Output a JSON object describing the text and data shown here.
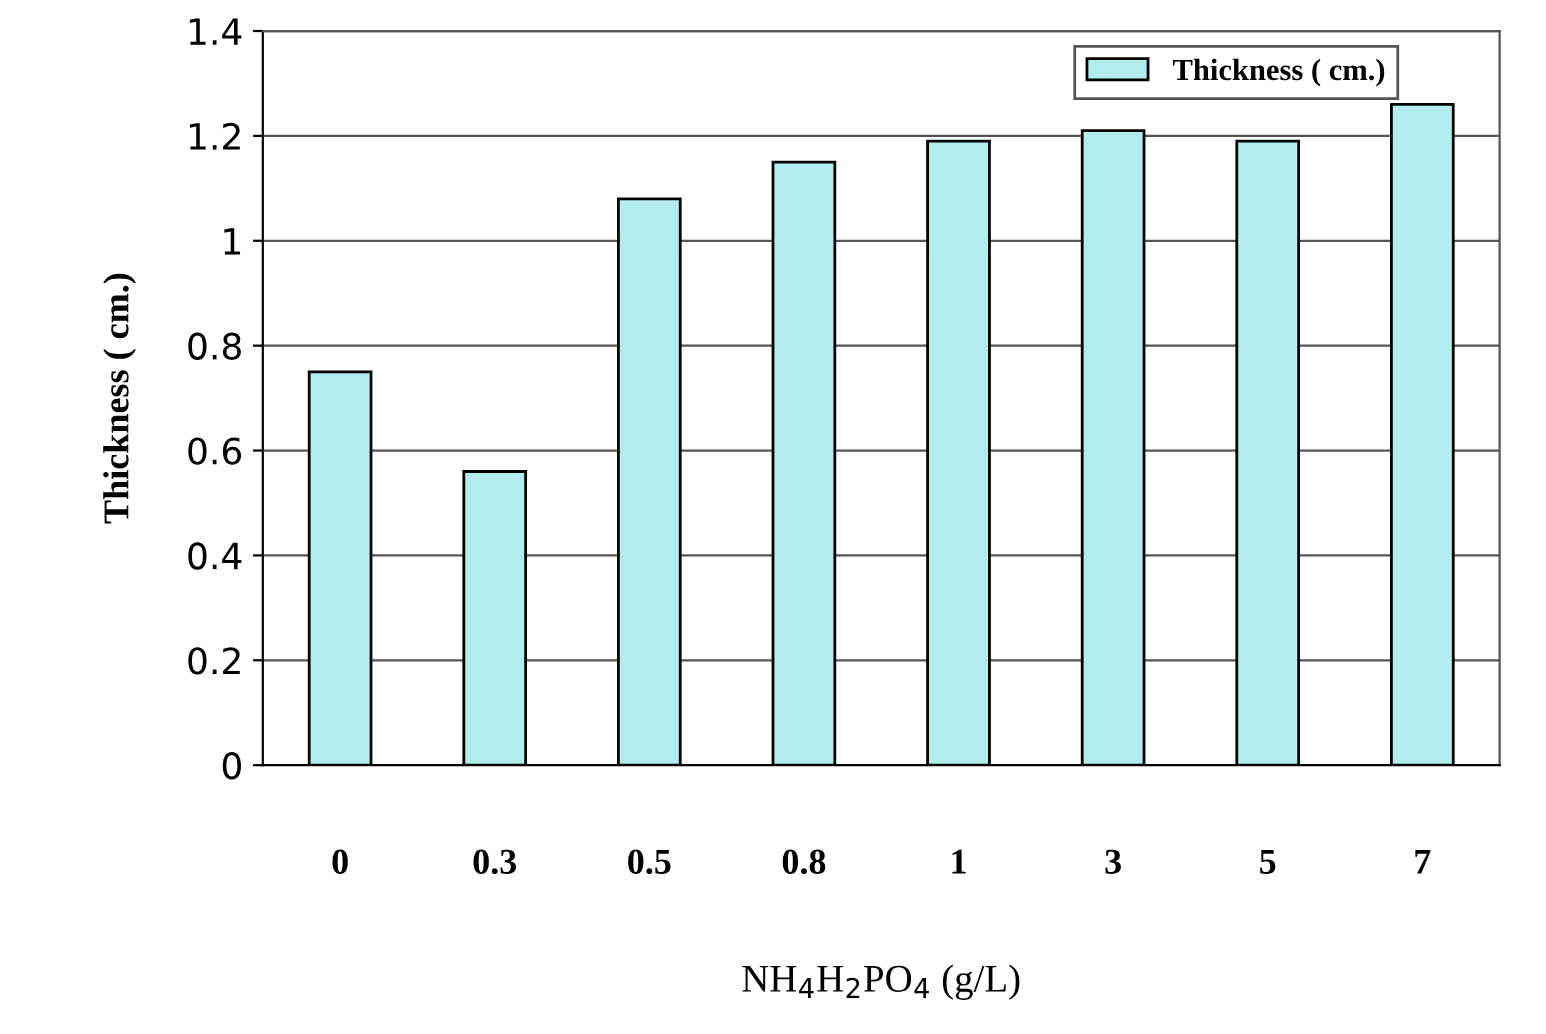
{
  "chart_data": {
    "type": "bar",
    "categories": [
      "0",
      "0.3",
      "0.5",
      "0.8",
      "1",
      "3",
      "5",
      "7"
    ],
    "series": [
      {
        "name": "Thickness ( cm.)",
        "color": "#b3ecec",
        "values": [
          0.75,
          0.56,
          1.08,
          1.15,
          1.19,
          1.21,
          1.19,
          1.26
        ]
      }
    ],
    "xlabel": "NH$_{4}$H$_{2}$PO$_{4}$ (g/L)",
    "ylabel": "Thickness ( cm.)",
    "ylim": [
      0,
      1.4
    ],
    "yticks": [
      0,
      0.2,
      0.4,
      0.6,
      0.8,
      1,
      1.2,
      1.4
    ],
    "grid": "y",
    "legend": "top right"
  }
}
